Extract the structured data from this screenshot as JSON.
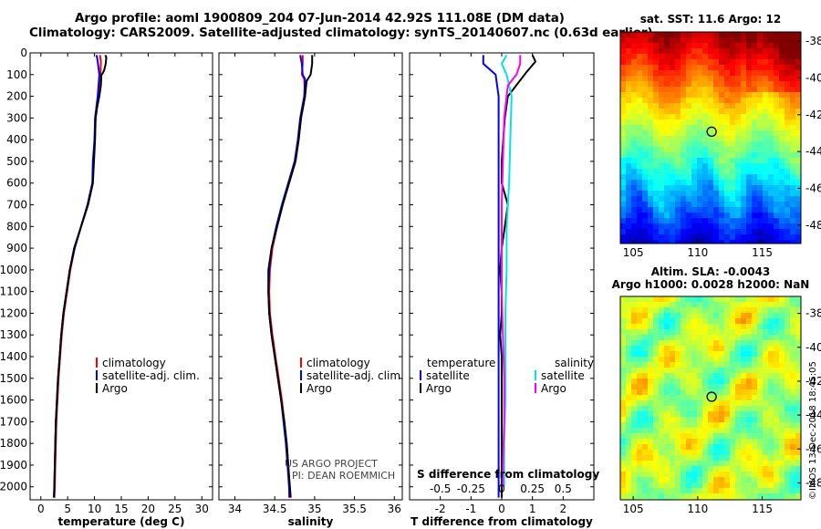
{
  "header": {
    "title_line1": "Argo profile: aoml 1900809_204 07-Jun-2014 42.92S 111.08E (DM data)",
    "title_line2": "Climatology: CARS2009. Satellite-adjusted climatology: synTS_20140607.nc (0.63d earlier)"
  },
  "footer": {
    "credit_line1": "US ARGO PROJECT",
    "credit_line2": "PI: DEAN ROEMMICH",
    "imos_stamp": "©IMOS 13-Dec-2018 18:45:05"
  },
  "colors": {
    "climatology": "#ff0000",
    "satellite": "#0000ff",
    "argo": "#000000",
    "sal_satellite": "#00e5e5",
    "sal_argo": "#ff00ff"
  },
  "chart_data": [
    {
      "id": "temperature",
      "type": "line",
      "xlabel": "temperature (deg C)",
      "ylabel": "",
      "xlim": [
        -2,
        32
      ],
      "ylim": [
        2060,
        0
      ],
      "xticks": [
        0,
        5,
        10,
        15,
        20,
        25,
        30
      ],
      "yticks": [
        0,
        100,
        200,
        300,
        400,
        500,
        600,
        700,
        800,
        900,
        1000,
        1100,
        1200,
        1300,
        1400,
        1500,
        1600,
        1700,
        1800,
        1900,
        2000
      ],
      "legend": [
        "climatology",
        "satellite-adj. clim.",
        "Argo"
      ],
      "series": [
        {
          "name": "climatology",
          "color": "#ff0000",
          "points": [
            [
              11.0,
              10
            ],
            [
              11.2,
              40
            ],
            [
              11.1,
              100
            ],
            [
              10.7,
              200
            ],
            [
              10.2,
              300
            ],
            [
              10.0,
              400
            ],
            [
              9.8,
              500
            ],
            [
              9.7,
              600
            ],
            [
              8.8,
              700
            ],
            [
              7.5,
              800
            ],
            [
              6.3,
              900
            ],
            [
              5.5,
              1000
            ],
            [
              4.9,
              1100
            ],
            [
              4.3,
              1200
            ],
            [
              3.9,
              1300
            ],
            [
              3.6,
              1400
            ],
            [
              3.3,
              1500
            ],
            [
              3.1,
              1600
            ],
            [
              2.9,
              1700
            ],
            [
              2.8,
              1800
            ],
            [
              2.7,
              1900
            ],
            [
              2.6,
              2000
            ],
            [
              2.5,
              2050
            ]
          ]
        },
        {
          "name": "satellite-adj. clim.",
          "color": "#0000ff",
          "points": [
            [
              10.4,
              10
            ],
            [
              10.6,
              40
            ],
            [
              10.9,
              100
            ],
            [
              10.6,
              200
            ],
            [
              10.1,
              300
            ],
            [
              10.0,
              400
            ],
            [
              9.7,
              500
            ],
            [
              9.6,
              600
            ],
            [
              8.7,
              700
            ],
            [
              7.5,
              800
            ],
            [
              6.2,
              900
            ],
            [
              5.4,
              1000
            ],
            [
              4.8,
              1100
            ],
            [
              4.2,
              1200
            ],
            [
              3.8,
              1300
            ],
            [
              3.5,
              1400
            ],
            [
              3.2,
              1500
            ],
            [
              3.0,
              1600
            ],
            [
              2.8,
              1700
            ],
            [
              2.7,
              1800
            ],
            [
              2.6,
              1900
            ],
            [
              2.5,
              2000
            ],
            [
              2.4,
              2050
            ]
          ]
        },
        {
          "name": "Argo",
          "color": "#000000",
          "points": [
            [
              12.0,
              10
            ],
            [
              12.2,
              20
            ],
            [
              12.1,
              50
            ],
            [
              11.8,
              80
            ],
            [
              11.5,
              95
            ],
            [
              11.3,
              100
            ],
            [
              11.2,
              150
            ],
            [
              10.9,
              200
            ],
            [
              10.5,
              250
            ],
            [
              10.2,
              300
            ],
            [
              10.1,
              400
            ],
            [
              9.9,
              500
            ],
            [
              9.7,
              600
            ],
            [
              8.8,
              700
            ],
            [
              7.5,
              800
            ],
            [
              6.3,
              900
            ],
            [
              5.4,
              1000
            ],
            [
              4.8,
              1100
            ],
            [
              4.2,
              1200
            ],
            [
              3.8,
              1300
            ],
            [
              3.5,
              1400
            ],
            [
              3.2,
              1500
            ],
            [
              3.0,
              1600
            ],
            [
              2.8,
              1700
            ],
            [
              2.7,
              1800
            ],
            [
              2.6,
              1900
            ],
            [
              2.5,
              2000
            ],
            [
              2.5,
              2050
            ]
          ]
        }
      ]
    },
    {
      "id": "salinity",
      "type": "line",
      "xlabel": "salinity",
      "ylabel": "",
      "xlim": [
        33.8,
        36.1
      ],
      "ylim": [
        2060,
        0
      ],
      "xticks": [
        34,
        34.5,
        35,
        35.5,
        36
      ],
      "legend": [
        "climatology",
        "satellite-adj. clim.",
        "Argo"
      ],
      "series": [
        {
          "name": "climatology",
          "color": "#ff0000",
          "points": [
            [
              34.85,
              10
            ],
            [
              34.85,
              50
            ],
            [
              34.84,
              100
            ],
            [
              34.87,
              120
            ],
            [
              34.88,
              200
            ],
            [
              34.83,
              300
            ],
            [
              34.8,
              400
            ],
            [
              34.76,
              500
            ],
            [
              34.68,
              600
            ],
            [
              34.6,
              700
            ],
            [
              34.53,
              800
            ],
            [
              34.47,
              900
            ],
            [
              34.44,
              1000
            ],
            [
              34.43,
              1100
            ],
            [
              34.44,
              1200
            ],
            [
              34.47,
              1300
            ],
            [
              34.51,
              1400
            ],
            [
              34.55,
              1500
            ],
            [
              34.59,
              1600
            ],
            [
              34.62,
              1700
            ],
            [
              34.65,
              1800
            ],
            [
              34.67,
              1900
            ],
            [
              34.68,
              2000
            ],
            [
              34.68,
              2050
            ]
          ]
        },
        {
          "name": "satellite-adj. clim.",
          "color": "#0000ff",
          "points": [
            [
              34.82,
              10
            ],
            [
              34.84,
              50
            ],
            [
              34.85,
              100
            ],
            [
              34.88,
              120
            ],
            [
              34.87,
              200
            ],
            [
              34.82,
              300
            ],
            [
              34.79,
              400
            ],
            [
              34.75,
              500
            ],
            [
              34.67,
              600
            ],
            [
              34.59,
              700
            ],
            [
              34.52,
              800
            ],
            [
              34.46,
              900
            ],
            [
              34.43,
              1000
            ],
            [
              34.42,
              1100
            ],
            [
              34.43,
              1200
            ],
            [
              34.46,
              1300
            ],
            [
              34.5,
              1400
            ],
            [
              34.54,
              1500
            ],
            [
              34.58,
              1600
            ],
            [
              34.61,
              1700
            ],
            [
              34.64,
              1800
            ],
            [
              34.66,
              1900
            ],
            [
              34.68,
              2000
            ],
            [
              34.69,
              2050
            ]
          ]
        },
        {
          "name": "Argo",
          "color": "#000000",
          "points": [
            [
              34.97,
              10
            ],
            [
              34.97,
              50
            ],
            [
              34.95,
              100
            ],
            [
              34.9,
              130
            ],
            [
              34.88,
              200
            ],
            [
              34.83,
              300
            ],
            [
              34.8,
              400
            ],
            [
              34.76,
              500
            ],
            [
              34.68,
              600
            ],
            [
              34.6,
              700
            ],
            [
              34.53,
              800
            ],
            [
              34.46,
              900
            ],
            [
              34.42,
              1000
            ],
            [
              34.42,
              1100
            ],
            [
              34.43,
              1200
            ],
            [
              34.46,
              1300
            ],
            [
              34.5,
              1400
            ],
            [
              34.54,
              1500
            ],
            [
              34.58,
              1600
            ],
            [
              34.62,
              1700
            ],
            [
              34.65,
              1800
            ],
            [
              34.67,
              1900
            ],
            [
              34.69,
              2000
            ],
            [
              34.7,
              2050
            ]
          ]
        }
      ]
    },
    {
      "id": "difference",
      "type": "line",
      "xlabel": "T difference from climatology",
      "x2label": "S difference from climatology",
      "xlim": [
        -3,
        3
      ],
      "x2lim": [
        -0.75,
        0.75
      ],
      "ylim": [
        2060,
        0
      ],
      "xticks": [
        -2,
        -1,
        0,
        1,
        2
      ],
      "x2ticks": [
        "-0.5",
        "-0.25",
        "0",
        "0.25",
        "0.5"
      ],
      "x2tick_values": [
        -0.5,
        -0.25,
        0,
        0.25,
        0.5
      ],
      "legend_temperature_title": "temperature",
      "legend_salinity_title": "salinity",
      "legend_temperature": [
        "satellite",
        "Argo"
      ],
      "legend_salinity": [
        "satellite",
        "Argo"
      ],
      "series": [
        {
          "name": "temperature satellite",
          "color": "#0000ff",
          "points": [
            [
              -0.6,
              10
            ],
            [
              -0.6,
              50
            ],
            [
              -0.2,
              100
            ],
            [
              -0.1,
              200
            ],
            [
              -0.1,
              400
            ],
            [
              -0.1,
              600
            ],
            [
              -0.1,
              800
            ],
            [
              -0.1,
              1000
            ],
            [
              -0.1,
              1200
            ],
            [
              -0.1,
              1400
            ],
            [
              -0.1,
              1600
            ],
            [
              -0.1,
              1800
            ],
            [
              -0.1,
              2000
            ],
            [
              -0.1,
              2050
            ]
          ]
        },
        {
          "name": "temperature Argo",
          "color": "#000000",
          "points": [
            [
              1.0,
              10
            ],
            [
              1.1,
              40
            ],
            [
              0.8,
              90
            ],
            [
              0.2,
              200
            ],
            [
              0.1,
              300
            ],
            [
              0.05,
              400
            ],
            [
              0.0,
              500
            ],
            [
              0.0,
              600
            ],
            [
              0.1,
              650
            ],
            [
              0.2,
              700
            ],
            [
              0.1,
              800
            ],
            [
              0.0,
              900
            ],
            [
              -0.05,
              1000
            ],
            [
              0.0,
              1100
            ],
            [
              0.0,
              1200
            ],
            [
              -0.05,
              1300
            ],
            [
              0.0,
              1400
            ],
            [
              0.0,
              1500
            ],
            [
              0.0,
              1600
            ],
            [
              0.0,
              1700
            ],
            [
              0.0,
              1800
            ],
            [
              0.0,
              1900
            ],
            [
              0.0,
              2000
            ],
            [
              0.0,
              2050
            ]
          ]
        },
        {
          "name": "salinity satellite",
          "color": "#00e5e5",
          "points": [
            [
              0.04,
              10
            ],
            [
              0.0,
              50
            ],
            [
              0.04,
              100
            ],
            [
              0.08,
              200
            ],
            [
              0.07,
              400
            ],
            [
              0.06,
              600
            ],
            [
              0.04,
              800
            ],
            [
              0.04,
              1000
            ],
            [
              0.03,
              1200
            ],
            [
              0.03,
              1400
            ],
            [
              0.03,
              1600
            ],
            [
              0.02,
              1800
            ],
            [
              0.02,
              2000
            ]
          ]
        },
        {
          "name": "salinity Argo",
          "color": "#ff00ff",
          "points": [
            [
              0.15,
              10
            ],
            [
              0.15,
              50
            ],
            [
              0.12,
              100
            ],
            [
              0.05,
              150
            ],
            [
              0.02,
              300
            ],
            [
              0.01,
              500
            ],
            [
              0.0,
              700
            ],
            [
              0.0,
              900
            ],
            [
              0.0,
              1100
            ],
            [
              0.01,
              1300
            ],
            [
              0.02,
              1500
            ],
            [
              0.02,
              1700
            ],
            [
              0.01,
              1900
            ],
            [
              0.01,
              2000
            ]
          ]
        }
      ]
    },
    {
      "id": "sst_map",
      "type": "heatmap",
      "title": "sat. SST: 11.6 Argo: 12",
      "xlim": [
        104,
        118
      ],
      "ylim": [
        -49,
        -37.5
      ],
      "xticks": [
        105,
        110,
        115
      ],
      "yticks": [
        -38,
        -40,
        -42,
        -44,
        -46,
        -48
      ],
      "marker": {
        "lon": 111.08,
        "lat": -42.92
      }
    },
    {
      "id": "sla_map",
      "type": "heatmap",
      "title_line1": "Altim. SLA: -0.0043",
      "title_line2": "Argo h1000: 0.0028 h2000: NaN",
      "xlim": [
        104,
        118
      ],
      "ylim": [
        -49,
        -37
      ],
      "xticks": [
        105,
        110,
        115
      ],
      "yticks": [
        -38,
        -40,
        -42,
        -44,
        -46,
        -48
      ],
      "marker": {
        "lon": 111.08,
        "lat": -42.92
      }
    }
  ]
}
